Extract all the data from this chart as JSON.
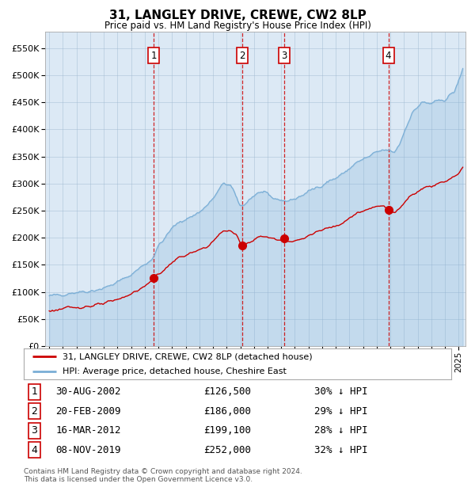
{
  "title": "31, LANGLEY DRIVE, CREWE, CW2 8LP",
  "subtitle": "Price paid vs. HM Land Registry's House Price Index (HPI)",
  "footer_line1": "Contains HM Land Registry data © Crown copyright and database right 2024.",
  "footer_line2": "This data is licensed under the Open Government Licence v3.0.",
  "legend_red": "31, LANGLEY DRIVE, CREWE, CW2 8LP (detached house)",
  "legend_blue": "HPI: Average price, detached house, Cheshire East",
  "background_color": "#dce9f5",
  "plot_bg_color": "#dce9f5",
  "outer_bg_color": "#ffffff",
  "red_color": "#cc0000",
  "blue_color": "#7aaed6",
  "blue_fill": "#c5d9ee",
  "ylim": [
    0,
    580000
  ],
  "yticks": [
    0,
    50000,
    100000,
    150000,
    200000,
    250000,
    300000,
    350000,
    400000,
    450000,
    500000,
    550000
  ],
  "xlim_start": 1994.7,
  "xlim_end": 2025.5,
  "transactions": [
    {
      "num": 1,
      "date": "30-AUG-2002",
      "price": 126500,
      "pct": "30%",
      "year": 2002.67
    },
    {
      "num": 2,
      "date": "20-FEB-2009",
      "price": 186000,
      "pct": "29%",
      "year": 2009.13
    },
    {
      "num": 3,
      "date": "16-MAR-2012",
      "price": 199100,
      "pct": "28%",
      "year": 2012.21
    },
    {
      "num": 4,
      "date": "08-NOV-2019",
      "price": 252000,
      "pct": "32%",
      "year": 2019.85
    }
  ],
  "hpi_anchors": [
    [
      1995.0,
      92000
    ],
    [
      1996.0,
      96000
    ],
    [
      1997.0,
      100000
    ],
    [
      1998.0,
      102000
    ],
    [
      1999.0,
      107000
    ],
    [
      2000.0,
      118000
    ],
    [
      2001.0,
      132000
    ],
    [
      2001.5,
      142000
    ],
    [
      2002.5,
      160000
    ],
    [
      2003.0,
      185000
    ],
    [
      2003.5,
      200000
    ],
    [
      2004.0,
      218000
    ],
    [
      2004.5,
      228000
    ],
    [
      2005.0,
      235000
    ],
    [
      2005.5,
      240000
    ],
    [
      2006.0,
      248000
    ],
    [
      2006.5,
      258000
    ],
    [
      2007.0,
      272000
    ],
    [
      2007.5,
      290000
    ],
    [
      2007.8,
      302000
    ],
    [
      2008.3,
      295000
    ],
    [
      2008.8,
      270000
    ],
    [
      2009.0,
      258000
    ],
    [
      2009.3,
      262000
    ],
    [
      2009.7,
      272000
    ],
    [
      2010.0,
      278000
    ],
    [
      2010.3,
      282000
    ],
    [
      2010.6,
      285000
    ],
    [
      2011.0,
      278000
    ],
    [
      2011.5,
      272000
    ],
    [
      2012.0,
      270000
    ],
    [
      2012.5,
      268000
    ],
    [
      2013.0,
      272000
    ],
    [
      2013.5,
      278000
    ],
    [
      2014.0,
      285000
    ],
    [
      2014.5,
      292000
    ],
    [
      2015.0,
      298000
    ],
    [
      2015.5,
      305000
    ],
    [
      2016.0,
      310000
    ],
    [
      2016.5,
      318000
    ],
    [
      2017.0,
      328000
    ],
    [
      2017.5,
      338000
    ],
    [
      2018.0,
      345000
    ],
    [
      2018.5,
      350000
    ],
    [
      2019.0,
      358000
    ],
    [
      2019.5,
      362000
    ],
    [
      2020.0,
      360000
    ],
    [
      2020.3,
      358000
    ],
    [
      2020.7,
      375000
    ],
    [
      2021.0,
      395000
    ],
    [
      2021.3,
      415000
    ],
    [
      2021.6,
      430000
    ],
    [
      2022.0,
      442000
    ],
    [
      2022.3,
      450000
    ],
    [
      2022.6,
      448000
    ],
    [
      2023.0,
      448000
    ],
    [
      2023.3,
      450000
    ],
    [
      2023.6,
      452000
    ],
    [
      2024.0,
      456000
    ],
    [
      2024.3,
      462000
    ],
    [
      2024.7,
      470000
    ],
    [
      2025.0,
      490000
    ],
    [
      2025.3,
      510000
    ]
  ],
  "red_anchors": [
    [
      1995.0,
      65000
    ],
    [
      1996.0,
      69000
    ],
    [
      1997.0,
      72000
    ],
    [
      1998.0,
      74000
    ],
    [
      1999.0,
      78000
    ],
    [
      2000.0,
      86000
    ],
    [
      2001.0,
      97000
    ],
    [
      2001.5,
      103000
    ],
    [
      2002.0,
      110000
    ],
    [
      2002.67,
      126500
    ],
    [
      2003.0,
      133000
    ],
    [
      2003.5,
      142000
    ],
    [
      2004.0,
      155000
    ],
    [
      2004.5,
      163000
    ],
    [
      2005.0,
      168000
    ],
    [
      2005.5,
      172000
    ],
    [
      2006.0,
      177000
    ],
    [
      2006.5,
      183000
    ],
    [
      2007.0,
      193000
    ],
    [
      2007.5,
      207000
    ],
    [
      2007.8,
      214000
    ],
    [
      2008.3,
      212000
    ],
    [
      2008.7,
      205000
    ],
    [
      2009.0,
      192000
    ],
    [
      2009.13,
      186000
    ],
    [
      2009.4,
      188000
    ],
    [
      2009.7,
      193000
    ],
    [
      2010.0,
      197000
    ],
    [
      2010.3,
      200000
    ],
    [
      2010.6,
      203000
    ],
    [
      2011.0,
      201000
    ],
    [
      2011.5,
      198000
    ],
    [
      2012.0,
      196000
    ],
    [
      2012.21,
      199100
    ],
    [
      2012.5,
      194000
    ],
    [
      2012.8,
      192000
    ],
    [
      2013.0,
      194000
    ],
    [
      2013.5,
      198000
    ],
    [
      2014.0,
      204000
    ],
    [
      2014.5,
      209000
    ],
    [
      2015.0,
      214000
    ],
    [
      2015.5,
      219000
    ],
    [
      2016.0,
      223000
    ],
    [
      2016.5,
      229000
    ],
    [
      2017.0,
      237000
    ],
    [
      2017.5,
      244000
    ],
    [
      2018.0,
      249000
    ],
    [
      2018.5,
      253000
    ],
    [
      2019.0,
      258000
    ],
    [
      2019.5,
      261000
    ],
    [
      2019.85,
      252000
    ],
    [
      2020.0,
      248000
    ],
    [
      2020.3,
      246000
    ],
    [
      2020.7,
      255000
    ],
    [
      2021.0,
      265000
    ],
    [
      2021.3,
      274000
    ],
    [
      2021.6,
      280000
    ],
    [
      2022.0,
      286000
    ],
    [
      2022.3,
      291000
    ],
    [
      2022.6,
      294000
    ],
    [
      2023.0,
      295000
    ],
    [
      2023.3,
      298000
    ],
    [
      2023.6,
      302000
    ],
    [
      2024.0,
      305000
    ],
    [
      2024.3,
      308000
    ],
    [
      2024.7,
      313000
    ],
    [
      2025.0,
      320000
    ],
    [
      2025.3,
      330000
    ]
  ]
}
